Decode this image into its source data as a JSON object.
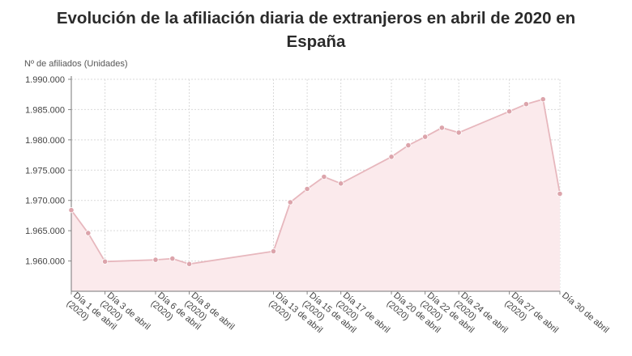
{
  "page": {
    "title_line1": "Evolución de la afiliación diaria de extranjeros en abril de 2020 en",
    "title_line2": "España"
  },
  "chart_data": {
    "type": "area",
    "title": "Evolución de la afiliación diaria de extranjeros en abril de 2020 en España",
    "ylabel": "Nº de afiliados (Unidades)",
    "ylim": [
      1955000,
      1990000
    ],
    "yticks": [
      1960000,
      1965000,
      1970000,
      1975000,
      1980000,
      1985000,
      1990000
    ],
    "ytick_labels": [
      "1.960.000",
      "1.965.000",
      "1.970.000",
      "1.975.000",
      "1.980.000",
      "1.985.000",
      "1.990.000"
    ],
    "x_days": [
      1,
      2,
      3,
      6,
      7,
      8,
      13,
      14,
      15,
      16,
      17,
      20,
      21,
      22,
      23,
      24,
      27,
      28,
      29,
      30
    ],
    "values": [
      1968400,
      1964600,
      1959900,
      1960200,
      1960400,
      1959500,
      1961600,
      1969700,
      1971900,
      1973900,
      1972800,
      1977200,
      1979100,
      1980500,
      1982000,
      1981200,
      1984700,
      1985900,
      1986700,
      1971100
    ],
    "xtick_days": [
      1,
      3,
      6,
      8,
      13,
      15,
      17,
      20,
      22,
      24,
      27,
      30
    ],
    "xtick_labels": [
      "Día 1 de abril (2020)",
      "Día 3 de abril (2020)",
      "Día 6 de abril (2020)",
      "Día 8 de abril (2020)",
      "Día 13 de abril (2020)",
      "Día 15 de abril (2020)",
      "Día 17 de abril (2020)",
      "Día 20 de abril (2020)",
      "Día 22 de abril (2020)",
      "Día 24 de abril (2020)",
      "Día 27 de abril (2020)",
      "Día 30 de abril"
    ],
    "grid": true,
    "colors": {
      "line": "#e7b7bd",
      "fill": "#fbeaec",
      "marker": "#dca4ab",
      "grid": "#d9d9d9"
    }
  }
}
